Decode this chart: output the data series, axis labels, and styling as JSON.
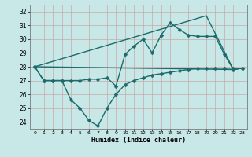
{
  "title": "",
  "xlabel": "Humidex (Indice chaleur)",
  "bg_color": "#c8e8e8",
  "grid_color": "#c8a8a8",
  "line_color": "#1a6b6b",
  "xlim": [
    -0.5,
    23.5
  ],
  "ylim": [
    23.5,
    32.5
  ],
  "yticks": [
    24,
    25,
    26,
    27,
    28,
    29,
    30,
    31,
    32
  ],
  "xticks": [
    0,
    1,
    2,
    3,
    4,
    5,
    6,
    7,
    8,
    9,
    10,
    11,
    12,
    13,
    14,
    15,
    16,
    17,
    18,
    19,
    20,
    21,
    22,
    23
  ],
  "series": [
    {
      "name": "jagged_low",
      "x": [
        0,
        1,
        2,
        3,
        4,
        5,
        6,
        7,
        8,
        9,
        10,
        11,
        12,
        13,
        14,
        15,
        16,
        17,
        18,
        19,
        20,
        21,
        22,
        23
      ],
      "y": [
        28,
        27,
        27,
        27,
        25.6,
        25.0,
        24.1,
        23.7,
        25.0,
        26.0,
        26.7,
        27.0,
        27.2,
        27.4,
        27.5,
        27.6,
        27.7,
        27.8,
        27.9,
        27.9,
        27.9,
        27.9,
        27.9,
        27.9
      ],
      "marker": "D",
      "markersize": 2.5,
      "linewidth": 1.0
    },
    {
      "name": "jagged_high",
      "x": [
        0,
        1,
        2,
        3,
        4,
        5,
        6,
        7,
        8,
        9,
        10,
        11,
        12,
        13,
        14,
        15,
        16,
        17,
        18,
        19,
        20,
        21,
        22,
        23
      ],
      "y": [
        28,
        27,
        27,
        27,
        27,
        27,
        27.1,
        27.1,
        27.2,
        26.6,
        28.9,
        29.5,
        30.0,
        29.0,
        30.3,
        31.2,
        30.7,
        30.3,
        30.2,
        30.2,
        30.2,
        28.9,
        27.8,
        27.9
      ],
      "marker": "D",
      "markersize": 2.5,
      "linewidth": 1.0
    },
    {
      "name": "trend_low",
      "x": [
        0,
        22,
        23
      ],
      "y": [
        28,
        27.8,
        27.9
      ],
      "marker": null,
      "markersize": 0,
      "linewidth": 1.0
    },
    {
      "name": "trend_high",
      "x": [
        0,
        19,
        22,
        23
      ],
      "y": [
        28,
        31.7,
        27.8,
        27.9
      ],
      "marker": null,
      "markersize": 0,
      "linewidth": 1.0
    }
  ]
}
